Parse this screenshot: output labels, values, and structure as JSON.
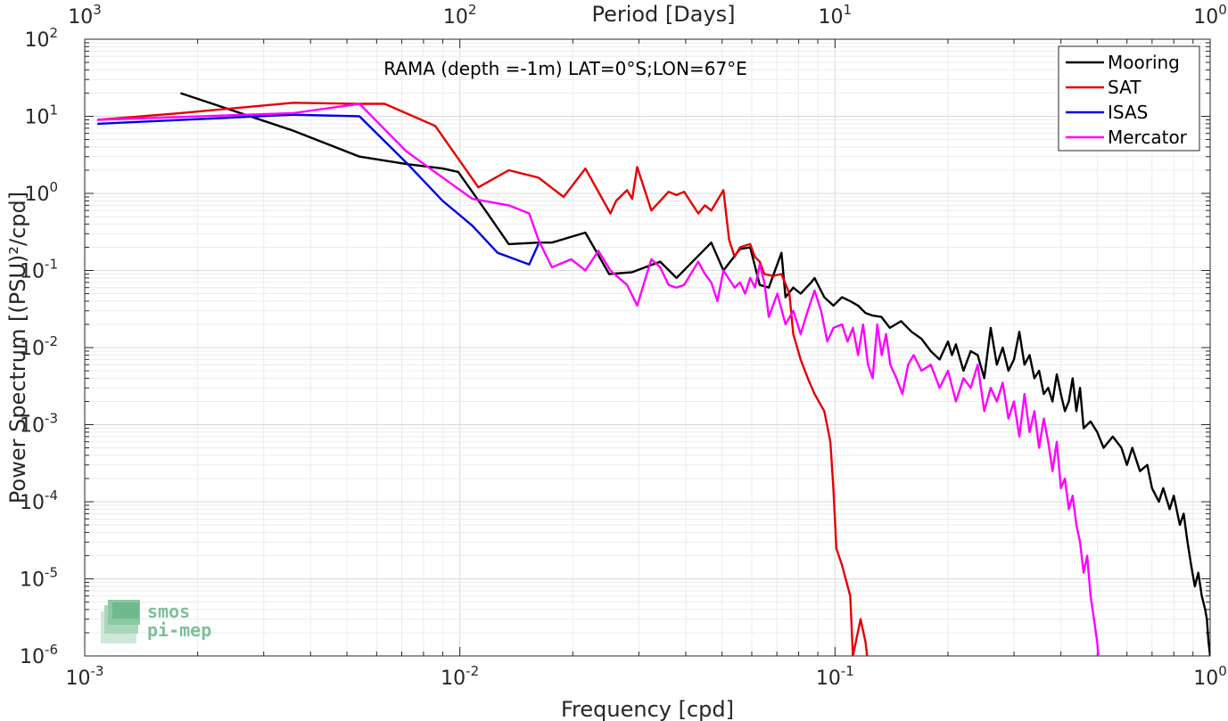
{
  "chart_data": {
    "type": "line",
    "title": "",
    "annotation": "RAMA (depth =-1m) LAT=0°S;LON=67°E",
    "xlabel": "Frequency [cpd]",
    "ylabel": "Power Spectrum [(PSU)²/cpd]",
    "x_top_label": "Period [Days]",
    "x_scale": "log",
    "y_scale": "log",
    "xlim": [
      0.001,
      1
    ],
    "ylim": [
      1e-06,
      100
    ],
    "grid": true,
    "legend_position": "top-right",
    "x_ticks": [
      {
        "base": "10",
        "exp": "-3"
      },
      {
        "base": "10",
        "exp": "-2"
      },
      {
        "base": "10",
        "exp": "-1"
      },
      {
        "base": "10",
        "exp": "0"
      }
    ],
    "x_top_ticks": [
      {
        "base": "10",
        "exp": "3"
      },
      {
        "base": "10",
        "exp": "2"
      },
      {
        "base": "10",
        "exp": "1"
      },
      {
        "base": "10",
        "exp": "0"
      }
    ],
    "y_ticks": [
      {
        "base": "10",
        "exp": "-6"
      },
      {
        "base": "10",
        "exp": "-5"
      },
      {
        "base": "10",
        "exp": "-4"
      },
      {
        "base": "10",
        "exp": "-3"
      },
      {
        "base": "10",
        "exp": "-2"
      },
      {
        "base": "10",
        "exp": "-1"
      },
      {
        "base": "10",
        "exp": "0"
      },
      {
        "base": "10",
        "exp": "1"
      },
      {
        "base": "10",
        "exp": "2"
      }
    ],
    "series": [
      {
        "name": "Mooring",
        "color": "#000000",
        "points": [
          [
            0.0018,
            20
          ],
          [
            0.0036,
            6.5
          ],
          [
            0.0054,
            3.0
          ],
          [
            0.0072,
            2.4
          ],
          [
            0.009,
            2.1
          ],
          [
            0.0099,
            1.9
          ],
          [
            0.0117,
            0.6
          ],
          [
            0.0135,
            0.22
          ],
          [
            0.0162,
            0.23
          ],
          [
            0.0176,
            0.23
          ],
          [
            0.0216,
            0.31
          ],
          [
            0.025,
            0.09
          ],
          [
            0.0288,
            0.095
          ],
          [
            0.0342,
            0.13
          ],
          [
            0.0378,
            0.08
          ],
          [
            0.0468,
            0.23
          ],
          [
            0.0504,
            0.1
          ],
          [
            0.0558,
            0.19
          ],
          [
            0.0594,
            0.2
          ],
          [
            0.063,
            0.065
          ],
          [
            0.0666,
            0.06
          ],
          [
            0.072,
            0.17
          ],
          [
            0.0738,
            0.045
          ],
          [
            0.0774,
            0.06
          ],
          [
            0.081,
            0.05
          ],
          [
            0.0864,
            0.07
          ],
          [
            0.0882,
            0.08
          ],
          [
            0.0936,
            0.045
          ],
          [
            0.099,
            0.035
          ],
          [
            0.1044,
            0.045
          ],
          [
            0.1098,
            0.04
          ],
          [
            0.1152,
            0.035
          ],
          [
            0.1206,
            0.028
          ],
          [
            0.126,
            0.026
          ],
          [
            0.133,
            0.025
          ],
          [
            0.14,
            0.018
          ],
          [
            0.15,
            0.022
          ],
          [
            0.16,
            0.016
          ],
          [
            0.17,
            0.013
          ],
          [
            0.18,
            0.009
          ],
          [
            0.19,
            0.007
          ],
          [
            0.2,
            0.012
          ],
          [
            0.205,
            0.008
          ],
          [
            0.21,
            0.011
          ],
          [
            0.22,
            0.005
          ],
          [
            0.23,
            0.009
          ],
          [
            0.24,
            0.008
          ],
          [
            0.25,
            0.004
          ],
          [
            0.26,
            0.018
          ],
          [
            0.27,
            0.006
          ],
          [
            0.28,
            0.01
          ],
          [
            0.29,
            0.005
          ],
          [
            0.3,
            0.007
          ],
          [
            0.31,
            0.016
          ],
          [
            0.32,
            0.006
          ],
          [
            0.33,
            0.008
          ],
          [
            0.34,
            0.004
          ],
          [
            0.35,
            0.005
          ],
          [
            0.36,
            0.0025
          ],
          [
            0.37,
            0.003
          ],
          [
            0.38,
            0.002
          ],
          [
            0.39,
            0.0045
          ],
          [
            0.4,
            0.0025
          ],
          [
            0.41,
            0.0015
          ],
          [
            0.42,
            0.002
          ],
          [
            0.43,
            0.004
          ],
          [
            0.44,
            0.0015
          ],
          [
            0.45,
            0.003
          ],
          [
            0.46,
            0.0009
          ],
          [
            0.48,
            0.0011
          ],
          [
            0.5,
            0.0008
          ],
          [
            0.52,
            0.0005
          ],
          [
            0.55,
            0.0007
          ],
          [
            0.58,
            0.0005
          ],
          [
            0.6,
            0.0003
          ],
          [
            0.62,
            0.0005
          ],
          [
            0.65,
            0.00025
          ],
          [
            0.68,
            0.0003
          ],
          [
            0.7,
            0.00015
          ],
          [
            0.73,
            0.0001
          ],
          [
            0.75,
            0.00015
          ],
          [
            0.78,
            8e-05
          ],
          [
            0.8,
            0.00012
          ],
          [
            0.83,
            5e-05
          ],
          [
            0.85,
            7e-05
          ],
          [
            0.87,
            3e-05
          ],
          [
            0.89,
            1.5e-05
          ],
          [
            0.91,
            8e-06
          ],
          [
            0.93,
            1.2e-05
          ],
          [
            0.95,
            6e-06
          ],
          [
            0.97,
            4e-06
          ],
          [
            0.98,
            3e-06
          ],
          [
            0.99,
            1.5e-06
          ],
          [
            1.0,
            1e-06
          ]
        ]
      },
      {
        "name": "SAT",
        "color": "#e60000",
        "points": [
          [
            0.00108,
            9.0
          ],
          [
            0.0018,
            11
          ],
          [
            0.0036,
            15
          ],
          [
            0.0054,
            14.5
          ],
          [
            0.0063,
            14.5
          ],
          [
            0.0086,
            7.5
          ],
          [
            0.0112,
            1.2
          ],
          [
            0.0135,
            2.0
          ],
          [
            0.0162,
            1.6
          ],
          [
            0.0189,
            0.9
          ],
          [
            0.0216,
            2.1
          ],
          [
            0.0252,
            0.55
          ],
          [
            0.0261,
            0.8
          ],
          [
            0.0279,
            1.1
          ],
          [
            0.0288,
            0.85
          ],
          [
            0.0297,
            2.2
          ],
          [
            0.0324,
            0.6
          ],
          [
            0.036,
            1.05
          ],
          [
            0.0378,
            0.95
          ],
          [
            0.0396,
            1.05
          ],
          [
            0.0432,
            0.55
          ],
          [
            0.045,
            0.7
          ],
          [
            0.0468,
            0.6
          ],
          [
            0.0504,
            1.1
          ],
          [
            0.0522,
            0.25
          ],
          [
            0.054,
            0.15
          ],
          [
            0.0558,
            0.2
          ],
          [
            0.0594,
            0.22
          ],
          [
            0.0612,
            0.15
          ],
          [
            0.063,
            0.13
          ],
          [
            0.0648,
            0.09
          ],
          [
            0.0684,
            0.085
          ],
          [
            0.072,
            0.09
          ],
          [
            0.0756,
            0.05
          ],
          [
            0.0774,
            0.015
          ],
          [
            0.081,
            0.007
          ],
          [
            0.0846,
            0.004
          ],
          [
            0.0882,
            0.0025
          ],
          [
            0.0936,
            0.0015
          ],
          [
            0.0972,
            0.0006
          ],
          [
            0.099,
            0.00015
          ],
          [
            0.1008,
            2.5e-05
          ],
          [
            0.1044,
            1.5e-05
          ],
          [
            0.1098,
            6e-06
          ],
          [
            0.1116,
            1e-06
          ],
          [
            0.117,
            3e-06
          ],
          [
            0.1206,
            1.5e-06
          ],
          [
            0.1224,
            8e-07
          ]
        ]
      },
      {
        "name": "ISAS",
        "color": "#0000e6",
        "points": [
          [
            0.00108,
            8.0
          ],
          [
            0.0036,
            10.5
          ],
          [
            0.0054,
            10
          ],
          [
            0.0072,
            2.5
          ],
          [
            0.009,
            0.8
          ],
          [
            0.0108,
            0.38
          ],
          [
            0.0126,
            0.17
          ],
          [
            0.0135,
            0.15
          ],
          [
            0.0153,
            0.12
          ],
          [
            0.0162,
            0.22
          ]
        ]
      },
      {
        "name": "Mercator",
        "color": "#ff00ff",
        "points": [
          [
            0.00108,
            9.0
          ],
          [
            0.0036,
            11
          ],
          [
            0.0054,
            14.5
          ],
          [
            0.0072,
            3.5
          ],
          [
            0.009,
            1.6
          ],
          [
            0.0108,
            0.85
          ],
          [
            0.0135,
            0.7
          ],
          [
            0.0153,
            0.55
          ],
          [
            0.0162,
            0.25
          ],
          [
            0.0176,
            0.11
          ],
          [
            0.0198,
            0.14
          ],
          [
            0.0216,
            0.1
          ],
          [
            0.0234,
            0.18
          ],
          [
            0.0252,
            0.1
          ],
          [
            0.0279,
            0.065
          ],
          [
            0.0297,
            0.035
          ],
          [
            0.0324,
            0.14
          ],
          [
            0.0342,
            0.11
          ],
          [
            0.036,
            0.065
          ],
          [
            0.0378,
            0.06
          ],
          [
            0.0396,
            0.065
          ],
          [
            0.0432,
            0.13
          ],
          [
            0.045,
            0.09
          ],
          [
            0.0468,
            0.07
          ],
          [
            0.0486,
            0.04
          ],
          [
            0.0504,
            0.1
          ],
          [
            0.054,
            0.06
          ],
          [
            0.0558,
            0.07
          ],
          [
            0.0576,
            0.05
          ],
          [
            0.0594,
            0.08
          ],
          [
            0.0612,
            0.06
          ],
          [
            0.063,
            0.12
          ],
          [
            0.0648,
            0.07
          ],
          [
            0.0666,
            0.025
          ],
          [
            0.0702,
            0.05
          ],
          [
            0.0738,
            0.02
          ],
          [
            0.0774,
            0.03
          ],
          [
            0.081,
            0.015
          ],
          [
            0.0846,
            0.03
          ],
          [
            0.0882,
            0.055
          ],
          [
            0.0918,
            0.03
          ],
          [
            0.0954,
            0.012
          ],
          [
            0.099,
            0.018
          ],
          [
            0.1044,
            0.02
          ],
          [
            0.108,
            0.012
          ],
          [
            0.1116,
            0.018
          ],
          [
            0.1152,
            0.008
          ],
          [
            0.1188,
            0.02
          ],
          [
            0.1224,
            0.006
          ],
          [
            0.126,
            0.004
          ],
          [
            0.1296,
            0.02
          ],
          [
            0.1332,
            0.008
          ],
          [
            0.1368,
            0.015
          ],
          [
            0.1404,
            0.006
          ],
          [
            0.1458,
            0.004
          ],
          [
            0.1512,
            0.0025
          ],
          [
            0.1566,
            0.006
          ],
          [
            0.162,
            0.008
          ],
          [
            0.17,
            0.005
          ],
          [
            0.18,
            0.006
          ],
          [
            0.19,
            0.003
          ],
          [
            0.2,
            0.005
          ],
          [
            0.21,
            0.002
          ],
          [
            0.22,
            0.004
          ],
          [
            0.23,
            0.003
          ],
          [
            0.24,
            0.006
          ],
          [
            0.25,
            0.0015
          ],
          [
            0.26,
            0.003
          ],
          [
            0.27,
            0.002
          ],
          [
            0.28,
            0.0035
          ],
          [
            0.29,
            0.0012
          ],
          [
            0.3,
            0.002
          ],
          [
            0.31,
            0.0007
          ],
          [
            0.32,
            0.0025
          ],
          [
            0.33,
            0.0008
          ],
          [
            0.34,
            0.0015
          ],
          [
            0.35,
            0.0005
          ],
          [
            0.36,
            0.0012
          ],
          [
            0.37,
            0.0006
          ],
          [
            0.38,
            0.00025
          ],
          [
            0.39,
            0.0006
          ],
          [
            0.4,
            0.00015
          ],
          [
            0.41,
            0.0002
          ],
          [
            0.42,
            8e-05
          ],
          [
            0.43,
            0.00012
          ],
          [
            0.44,
            5e-05
          ],
          [
            0.45,
            3e-05
          ],
          [
            0.46,
            1.2e-05
          ],
          [
            0.47,
            2e-05
          ],
          [
            0.48,
            6e-06
          ],
          [
            0.49,
            3e-06
          ],
          [
            0.5,
            1.5e-06
          ],
          [
            0.505,
            8e-07
          ]
        ]
      }
    ]
  },
  "logo": {
    "line1": "smos",
    "line2": "pi-mep"
  }
}
